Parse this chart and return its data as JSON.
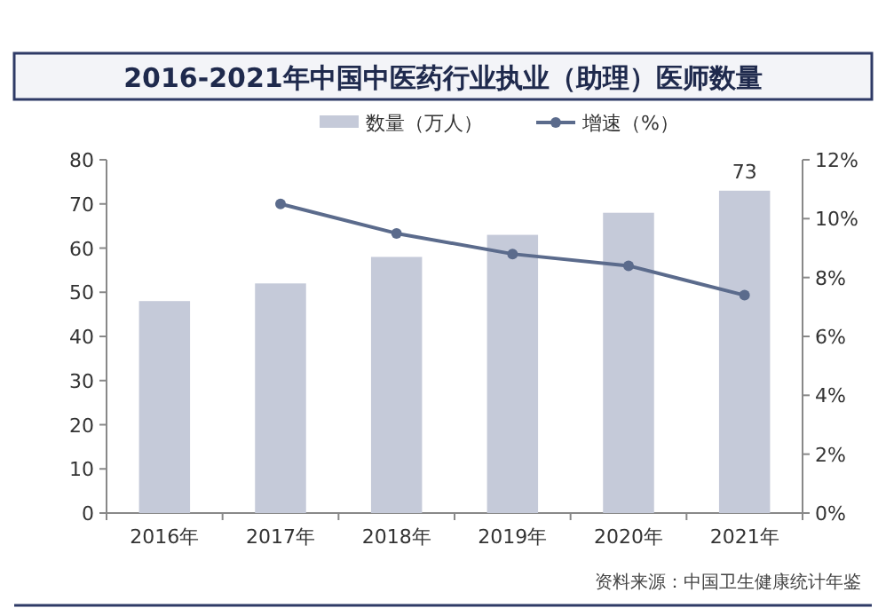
{
  "chart_data": {
    "type": "bar",
    "title": "2016-2021年中国中医药行业执业（助理）医师数量",
    "categories": [
      "2016年",
      "2017年",
      "2018年",
      "2019年",
      "2020年",
      "2021年"
    ],
    "series": [
      {
        "name": "数量（万人）",
        "type": "bar",
        "color": "#c5cad9",
        "values": [
          48,
          52,
          58,
          63,
          68,
          73
        ],
        "value_labels": [
          null,
          null,
          null,
          null,
          null,
          "73"
        ]
      },
      {
        "name": "增速（%）",
        "type": "line",
        "axis": "y2",
        "color": "#5b6b8c",
        "values": [
          null,
          10.5,
          9.5,
          8.8,
          8.4,
          7.4
        ]
      }
    ],
    "ylim": [
      0,
      80
    ],
    "yticks": [
      0,
      10,
      20,
      30,
      40,
      50,
      60,
      70,
      80
    ],
    "y2lim": [
      0,
      12
    ],
    "y2ticks": [
      {
        "value": 0,
        "label": "0%"
      },
      {
        "value": 2,
        "label": "2%"
      },
      {
        "value": 4,
        "label": "4%"
      },
      {
        "value": 6,
        "label": "6%"
      },
      {
        "value": 8,
        "label": "8%"
      },
      {
        "value": 10,
        "label": "10%"
      },
      {
        "value": 12,
        "label": "12%"
      }
    ],
    "legend": "top",
    "marker": "circle",
    "line_style": "solid",
    "annotations": [
      "资料来源：中国卫生健康统计年鉴"
    ]
  }
}
